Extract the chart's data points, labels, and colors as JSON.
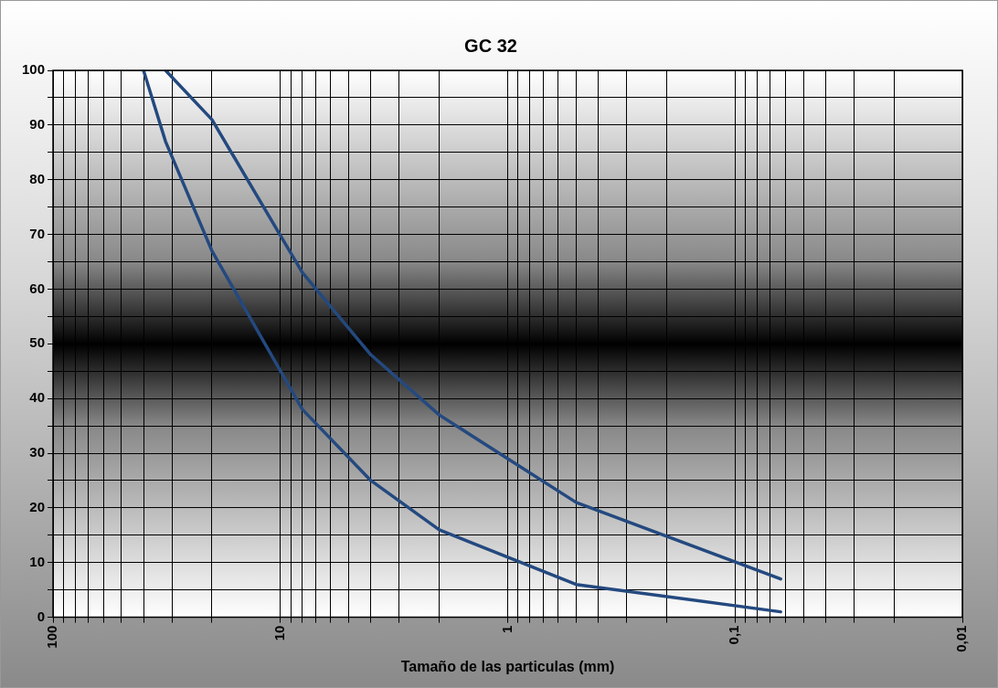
{
  "chart_data": {
    "type": "line",
    "title": "GC 32",
    "xlabel": "Tamaño de las particulas (mm)",
    "log": "x",
    "xlim": [
      100,
      0.01
    ],
    "xticks": [
      100,
      {
        "value": 90,
        "label": null
      },
      {
        "value": 80,
        "label": null
      },
      {
        "value": 70,
        "label": null
      },
      {
        "value": 60,
        "label": null
      },
      {
        "value": 50,
        "label": null
      },
      {
        "value": 40,
        "label": null
      },
      {
        "value": 30,
        "label": null
      },
      {
        "value": 20,
        "label": null
      },
      10,
      {
        "value": 9,
        "label": null
      },
      {
        "value": 8,
        "label": null
      },
      {
        "value": 7,
        "label": null
      },
      {
        "value": 6,
        "label": null
      },
      {
        "value": 5,
        "label": null
      },
      {
        "value": 4,
        "label": null
      },
      {
        "value": 3,
        "label": null
      },
      {
        "value": 2,
        "label": null
      },
      1,
      {
        "value": 0.9,
        "label": null
      },
      {
        "value": 0.8,
        "label": null
      },
      {
        "value": 0.7,
        "label": null
      },
      {
        "value": 0.6,
        "label": null
      },
      {
        "value": 0.5,
        "label": null
      },
      {
        "value": 0.4,
        "label": null
      },
      {
        "value": 0.3,
        "label": null
      },
      {
        "value": 0.2,
        "label": null
      },
      {
        "value": 0.1,
        "label": "0,1"
      },
      {
        "value": 0.09,
        "label": null
      },
      {
        "value": 0.08,
        "label": null
      },
      {
        "value": 0.07,
        "label": null
      },
      {
        "value": 0.06,
        "label": null
      },
      {
        "value": 0.05,
        "label": null
      },
      {
        "value": 0.04,
        "label": null
      },
      {
        "value": 0.03,
        "label": null
      },
      {
        "value": 0.02,
        "label": null
      },
      {
        "value": 0.01,
        "label": "0,01"
      }
    ],
    "ylim": [
      0,
      100
    ],
    "yticks": [
      0,
      {
        "value": 5,
        "label": null
      },
      10,
      {
        "value": 15,
        "label": null
      },
      20,
      {
        "value": 25,
        "label": null
      },
      30,
      {
        "value": 35,
        "label": null
      },
      40,
      {
        "value": 45,
        "label": null
      },
      50,
      {
        "value": 55,
        "label": null
      },
      60,
      {
        "value": 65,
        "label": null
      },
      70,
      {
        "value": 75,
        "label": null
      },
      80,
      {
        "value": 85,
        "label": null
      },
      90,
      {
        "value": 95,
        "label": null
      },
      100
    ],
    "grid": true,
    "legend": false,
    "marker": "none",
    "line_style": "solid",
    "series": [
      {
        "color": "#24497f",
        "x": [
          32,
          20,
          8,
          4,
          2,
          0.5,
          0.063
        ],
        "values": [
          100,
          91,
          63,
          48,
          37,
          21,
          7
        ]
      },
      {
        "color": "#24497f",
        "x": [
          40,
          32,
          20,
          8,
          4,
          2,
          0.5,
          0.063
        ],
        "values": [
          100,
          87,
          67,
          38,
          25,
          16,
          6,
          1
        ]
      }
    ]
  }
}
